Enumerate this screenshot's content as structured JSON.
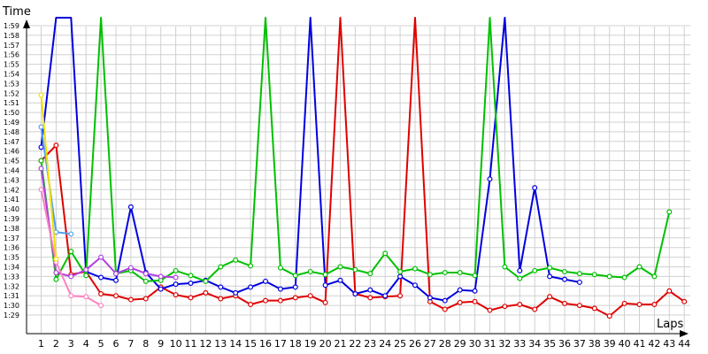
{
  "chart_data": {
    "type": "line",
    "title": "",
    "ylabel": "Time",
    "xlabel": "Laps",
    "ylim_seconds": [
      88,
      122
    ],
    "y_ticks": [
      "1:29",
      "1:30",
      "1:31",
      "1:32",
      "1:33",
      "1:34",
      "1:35",
      "1:36",
      "1:37",
      "1:38",
      "1:39",
      "1:40",
      "1:41",
      "1:42",
      "1:43",
      "1:44",
      "1:45",
      "1:46",
      "1:47",
      "1:48",
      "1:49",
      "1:50",
      "1:51",
      "1:52",
      "1:53",
      "1:54",
      "1:55",
      "1:56",
      "1:57",
      "1:58",
      "1:59"
    ],
    "x_ticks": [
      1,
      2,
      3,
      4,
      5,
      6,
      7,
      8,
      9,
      10,
      11,
      12,
      13,
      14,
      15,
      16,
      17,
      18,
      19,
      20,
      21,
      22,
      23,
      24,
      25,
      26,
      27,
      28,
      29,
      30,
      31,
      32,
      33,
      34,
      35,
      36,
      37,
      38,
      39,
      40,
      41,
      42,
      43,
      44
    ],
    "grid": true,
    "legend": "none",
    "series": [
      {
        "color": "#e00000",
        "laps": [
          1,
          2,
          3,
          4,
          5,
          6,
          7,
          8,
          9,
          10,
          11,
          12,
          13,
          14,
          15,
          16,
          17,
          18,
          19,
          20,
          21,
          22,
          23,
          24,
          25,
          26,
          27,
          28,
          29,
          30,
          31,
          32,
          33,
          34,
          35,
          36,
          37,
          38,
          39,
          40,
          41,
          42,
          43,
          44
        ],
        "times": [
          105.0,
          106.6,
          93.2,
          93.5,
          91.2,
          91.0,
          90.6,
          90.7,
          91.9,
          91.1,
          90.8,
          91.3,
          90.7,
          91.0,
          90.1,
          90.5,
          90.5,
          90.8,
          91.0,
          90.3,
          null,
          91.2,
          90.8,
          90.9,
          91.0,
          null,
          90.4,
          89.6,
          90.3,
          90.4,
          89.5,
          89.9,
          90.1,
          89.6,
          90.9,
          90.2,
          90.0,
          89.7,
          88.9,
          90.2,
          90.1,
          90.1,
          91.5,
          90.4
        ]
      },
      {
        "color": "#0000e0",
        "laps": [
          1,
          2,
          3,
          4,
          5,
          6,
          7,
          8,
          9,
          10,
          11,
          12,
          13,
          14,
          15,
          16,
          17,
          18,
          19,
          20,
          21,
          22,
          23,
          24,
          25,
          26,
          27,
          28,
          29,
          30,
          31,
          32,
          33,
          34,
          35,
          36,
          37
        ],
        "times": [
          106.4,
          null,
          null,
          93.5,
          92.9,
          92.6,
          100.2,
          93.4,
          91.7,
          92.2,
          92.3,
          92.6,
          91.9,
          91.3,
          91.9,
          92.5,
          91.7,
          91.9,
          null,
          92.1,
          92.6,
          91.2,
          91.6,
          91.0,
          93.0,
          92.1,
          90.8,
          90.5,
          91.6,
          91.5,
          103.1,
          null,
          93.6,
          102.2,
          93.0,
          92.7,
          92.4
        ]
      },
      {
        "color": "#00c000",
        "laps": [
          1,
          2,
          3,
          4,
          5,
          6,
          7,
          8,
          9,
          10,
          11,
          12,
          13,
          14,
          15,
          16,
          17,
          18,
          19,
          20,
          21,
          22,
          23,
          24,
          25,
          26,
          27,
          28,
          29,
          30,
          31,
          32,
          33,
          34,
          35,
          36,
          37,
          38,
          39,
          40,
          41,
          42,
          43
        ],
        "times": [
          105.0,
          92.7,
          95.6,
          93.1,
          null,
          93.3,
          93.6,
          92.5,
          92.6,
          93.6,
          93.1,
          92.5,
          94.0,
          94.7,
          94.1,
          null,
          93.9,
          93.1,
          93.5,
          93.2,
          94.0,
          93.7,
          93.3,
          95.4,
          93.5,
          93.8,
          93.2,
          93.4,
          93.4,
          93.1,
          null,
          94.0,
          92.8,
          93.6,
          93.9,
          93.5,
          93.3,
          93.2,
          93.0,
          92.9,
          94.0,
          93.0,
          99.7
        ]
      },
      {
        "color": "#50a0f0",
        "laps": [
          1,
          2,
          3
        ],
        "times": [
          108.5,
          97.6,
          97.4
        ]
      },
      {
        "color": "#b040e0",
        "laps": [
          1,
          2,
          3,
          4,
          5,
          6,
          7,
          8,
          9,
          10
        ],
        "times": [
          104.2,
          93.4,
          93.0,
          93.7,
          95.0,
          93.3,
          93.9,
          93.3,
          93.0,
          92.9
        ]
      },
      {
        "color": "#ff80c0",
        "laps": [
          1,
          2,
          3,
          4,
          5
        ],
        "times": [
          102.0,
          94.5,
          91.0,
          90.9,
          90.0
        ]
      },
      {
        "color": "#f0e000",
        "laps": [
          1,
          2
        ],
        "times": [
          111.8,
          94.8
        ]
      }
    ]
  }
}
